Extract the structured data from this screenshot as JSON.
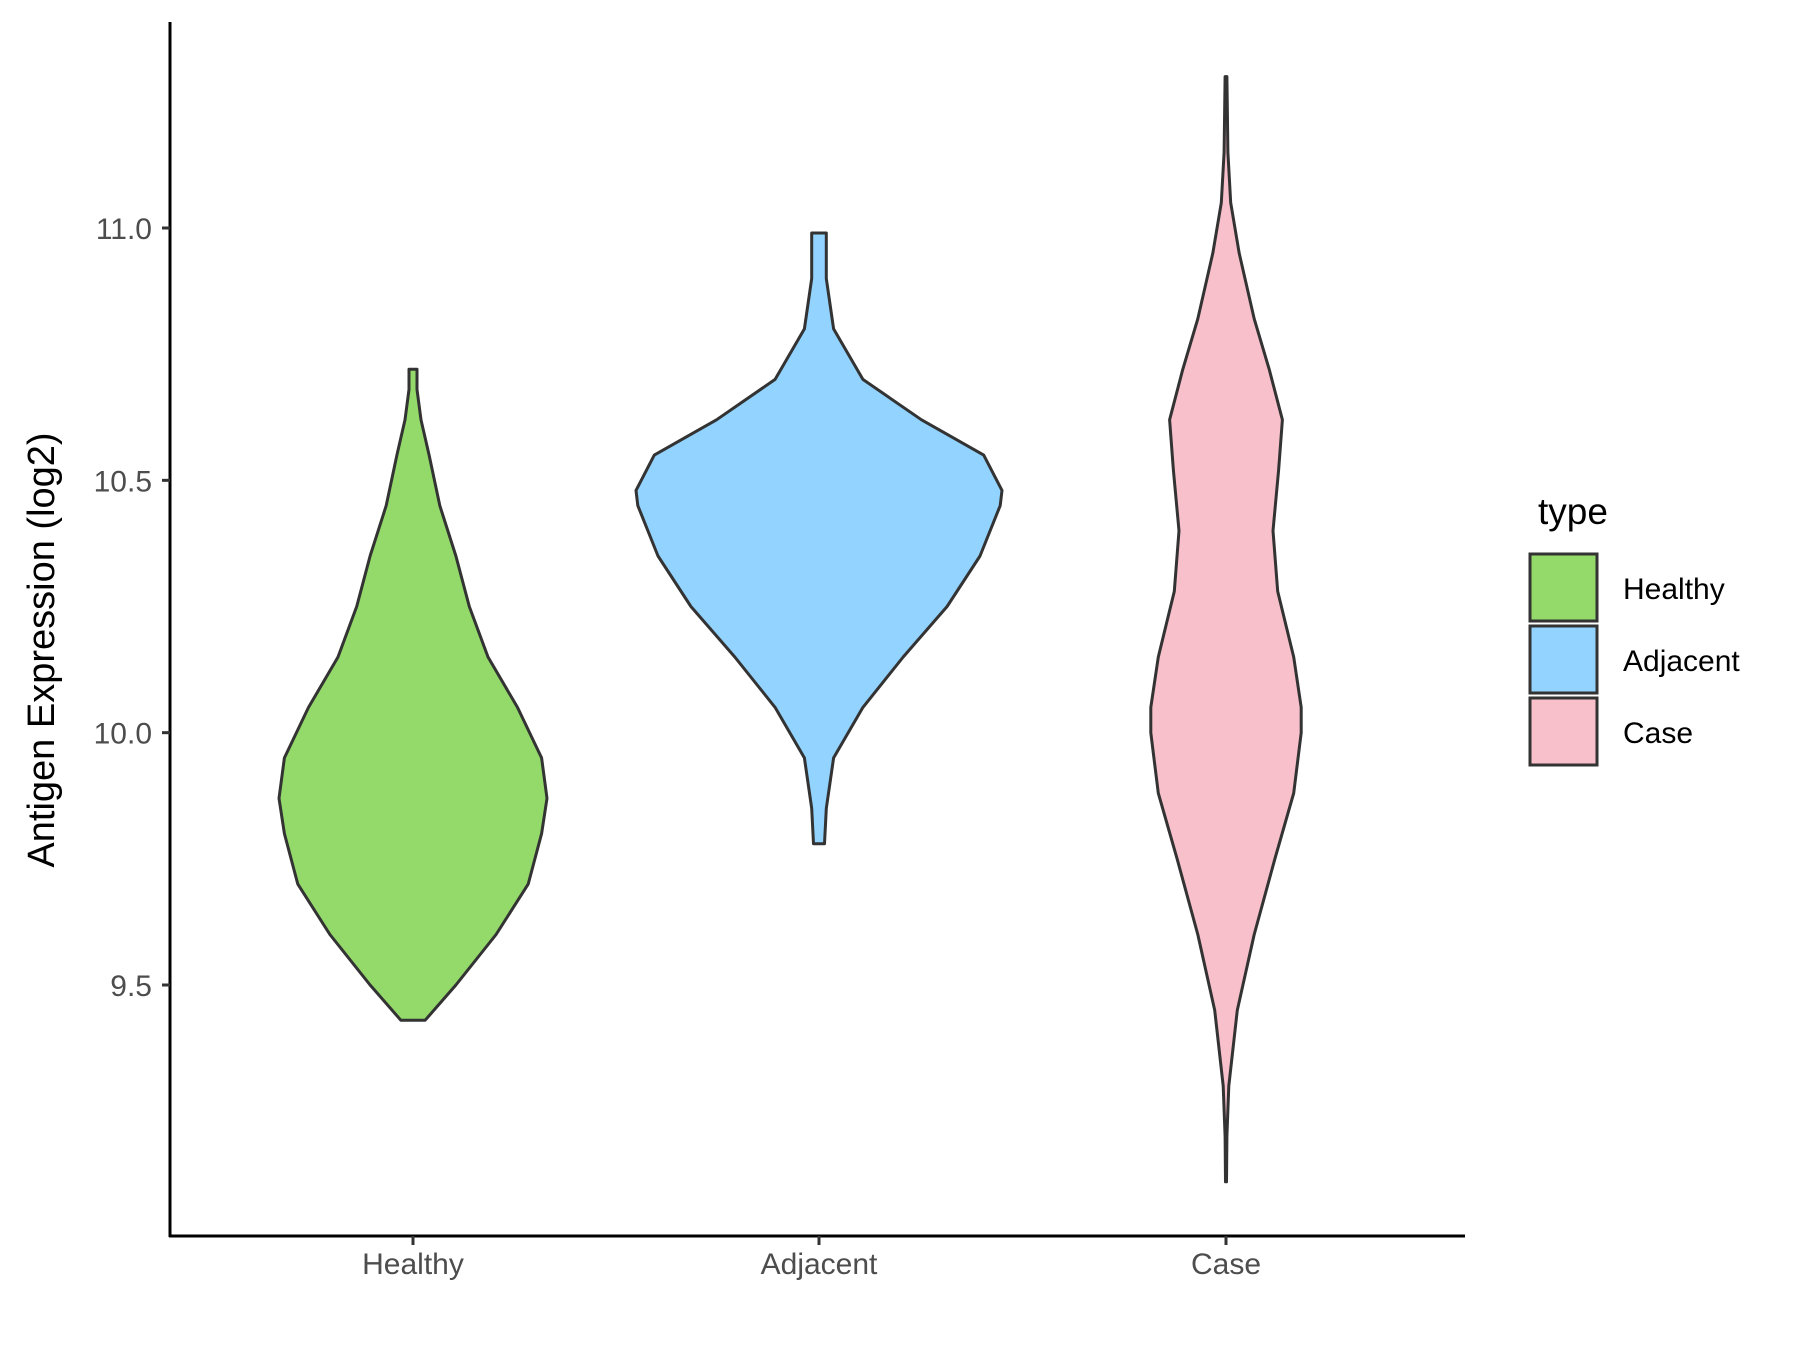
{
  "chart_data": {
    "type": "violin",
    "ylabel": "Antigen Expression (log2)",
    "xlabel": "",
    "ylim": [
      9.0,
      11.4
    ],
    "yticks": [
      9.5,
      10.0,
      10.5,
      11.0
    ],
    "ytick_labels": [
      "9.5",
      "10.0",
      "10.5",
      "11.0"
    ],
    "categories": [
      "Healthy",
      "Adjacent",
      "Case"
    ],
    "grid": false,
    "legend": {
      "title": "type",
      "position": "right",
      "entries": [
        "Healthy",
        "Adjacent",
        "Case"
      ]
    },
    "colors": {
      "Healthy": "#93DA6A",
      "Adjacent": "#93D3FF",
      "Case": "#F8C0CB",
      "outline": "#333333"
    },
    "series": [
      {
        "name": "Healthy",
        "min": 9.43,
        "max": 10.72,
        "density": [
          [
            9.43,
            0.09
          ],
          [
            9.5,
            0.32
          ],
          [
            9.6,
            0.62
          ],
          [
            9.7,
            0.86
          ],
          [
            9.8,
            0.96
          ],
          [
            9.87,
            1.0
          ],
          [
            9.95,
            0.96
          ],
          [
            10.05,
            0.78
          ],
          [
            10.15,
            0.56
          ],
          [
            10.25,
            0.42
          ],
          [
            10.35,
            0.32
          ],
          [
            10.45,
            0.2
          ],
          [
            10.55,
            0.12
          ],
          [
            10.62,
            0.06
          ],
          [
            10.68,
            0.03
          ],
          [
            10.72,
            0.03
          ]
        ]
      },
      {
        "name": "Adjacent",
        "min": 9.78,
        "max": 10.99,
        "density": [
          [
            9.78,
            0.03
          ],
          [
            9.85,
            0.04
          ],
          [
            9.95,
            0.08
          ],
          [
            10.05,
            0.24
          ],
          [
            10.15,
            0.46
          ],
          [
            10.25,
            0.7
          ],
          [
            10.35,
            0.88
          ],
          [
            10.45,
            0.99
          ],
          [
            10.48,
            1.0
          ],
          [
            10.55,
            0.9
          ],
          [
            10.62,
            0.56
          ],
          [
            10.7,
            0.24
          ],
          [
            10.8,
            0.08
          ],
          [
            10.9,
            0.04
          ],
          [
            10.99,
            0.04
          ]
        ]
      },
      {
        "name": "Case",
        "min": 9.11,
        "max": 11.3,
        "density": [
          [
            9.11,
            0.005
          ],
          [
            9.2,
            0.01
          ],
          [
            9.3,
            0.03
          ],
          [
            9.45,
            0.12
          ],
          [
            9.6,
            0.3
          ],
          [
            9.75,
            0.52
          ],
          [
            9.88,
            0.72
          ],
          [
            10.0,
            0.8
          ],
          [
            10.05,
            0.8
          ],
          [
            10.15,
            0.72
          ],
          [
            10.28,
            0.55
          ],
          [
            10.4,
            0.5
          ],
          [
            10.52,
            0.56
          ],
          [
            10.62,
            0.6
          ],
          [
            10.72,
            0.46
          ],
          [
            10.82,
            0.3
          ],
          [
            10.95,
            0.14
          ],
          [
            11.05,
            0.05
          ],
          [
            11.15,
            0.02
          ],
          [
            11.3,
            0.01
          ]
        ]
      }
    ]
  }
}
